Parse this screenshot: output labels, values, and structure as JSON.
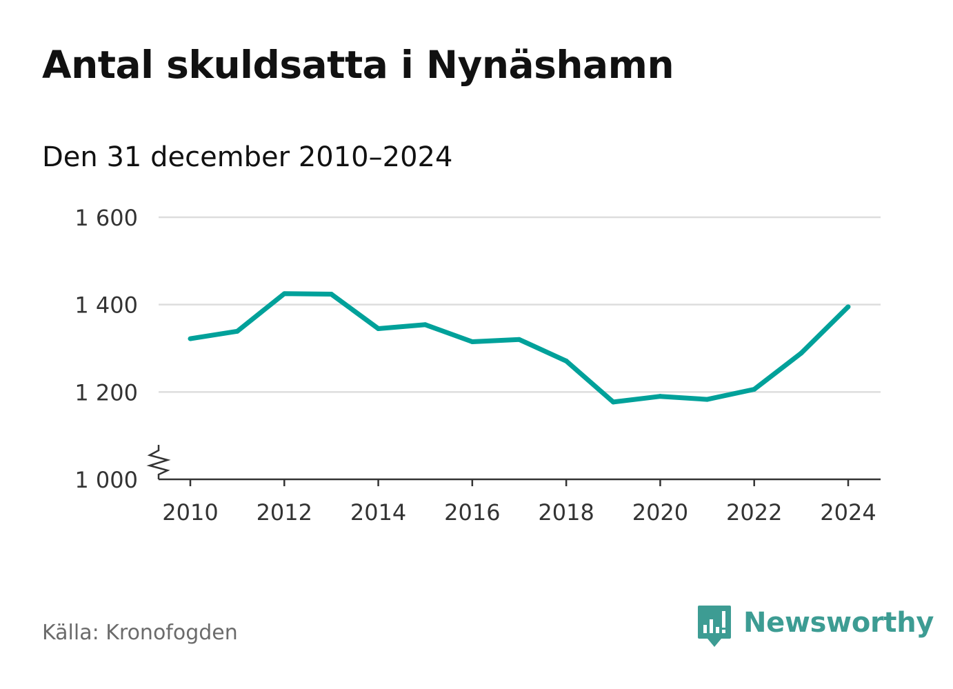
{
  "title": "Antal skuldsatta i Nynäshamn",
  "subtitle": "Den 31 december 2010–2024",
  "source": "Källa: Kronofogden",
  "brand": "Newsworthy",
  "colors": {
    "line": "#00a19a",
    "grid": "#dddddd",
    "axis": "#333333",
    "brand": "#3d9c93",
    "text": "#111111",
    "source": "#6b6b6b"
  },
  "chart_data": {
    "type": "line",
    "title": "Antal skuldsatta i Nynäshamn",
    "subtitle": "Den 31 december 2010–2024",
    "xlabel": "",
    "ylabel": "",
    "x": [
      2010,
      2011,
      2012,
      2013,
      2014,
      2015,
      2016,
      2017,
      2018,
      2019,
      2020,
      2021,
      2022,
      2023,
      2024
    ],
    "series": [
      {
        "name": "Antal skuldsatta",
        "values": [
          1322,
          1339,
          1425,
          1424,
          1345,
          1354,
          1315,
          1320,
          1271,
          1177,
          1190,
          1183,
          1206,
          1289,
          1395
        ]
      }
    ],
    "ylim": [
      1000,
      1600
    ],
    "yticks": [
      1000,
      1200,
      1400,
      1600
    ],
    "ytick_labels": [
      "1 000",
      "1 200",
      "1 400",
      "1 600"
    ],
    "xticks": [
      2010,
      2012,
      2014,
      2016,
      2018,
      2020,
      2022,
      2024
    ],
    "xtick_labels": [
      "2010",
      "2012",
      "2014",
      "2016",
      "2018",
      "2020",
      "2022",
      "2024"
    ],
    "gridlines": [
      1200,
      1400,
      1600
    ],
    "axis_break": true,
    "grid": true,
    "legend": "none"
  }
}
